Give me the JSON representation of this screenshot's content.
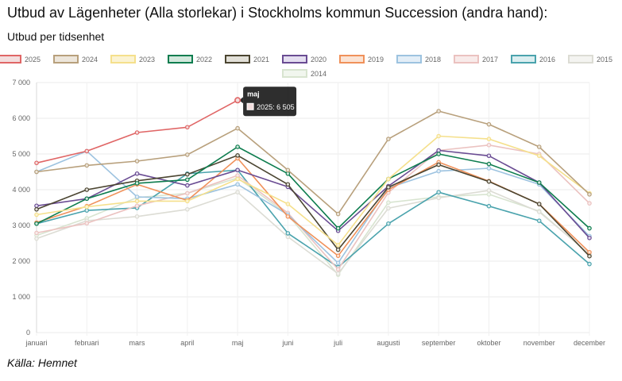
{
  "header": {
    "title": "Utbud av Lägenheter (Alla storlekar) i Stockholms kommun Succession (andra hand):",
    "subtitle": "Utbud per tidsenhet"
  },
  "footer": {
    "source": "Källa: Hemnet"
  },
  "tooltip": {
    "title": "maj",
    "label": "2025: 6 505",
    "series": "2025",
    "category_index": 4
  },
  "chart_data": {
    "type": "line",
    "categories": [
      "januari",
      "februari",
      "mars",
      "april",
      "maj",
      "juni",
      "juli",
      "augusti",
      "september",
      "oktober",
      "november",
      "december"
    ],
    "ylim": [
      0,
      7000
    ],
    "yticks": [
      0,
      1000,
      2000,
      3000,
      4000,
      5000,
      6000,
      7000
    ],
    "ytick_labels": [
      "0",
      "1 000",
      "2 000",
      "3 000",
      "4 000",
      "5 000",
      "6 000",
      "7 000"
    ],
    "grid": true,
    "legend_position": "top",
    "series": [
      {
        "name": "2025",
        "color": "#e06666",
        "fill": "#f3dede",
        "values": [
          4750,
          5080,
          5600,
          5750,
          6505,
          null,
          null,
          null,
          null,
          null,
          null,
          null
        ]
      },
      {
        "name": "2024",
        "color": "#b8a07c",
        "fill": "#ede6db",
        "values": [
          4500,
          4680,
          4800,
          4980,
          5720,
          4550,
          3320,
          5420,
          6200,
          5830,
          5200,
          3870
        ]
      },
      {
        "name": "2023",
        "color": "#f5e08c",
        "fill": "#fbf3d2",
        "values": [
          3300,
          3520,
          3680,
          3680,
          4300,
          3600,
          2450,
          4300,
          5500,
          5420,
          4950,
          3900
        ]
      },
      {
        "name": "2022",
        "color": "#0e7d4f",
        "fill": "#d2e8dc",
        "values": [
          3050,
          3750,
          4180,
          4280,
          5200,
          4450,
          2920,
          4300,
          5000,
          4720,
          4200,
          2920
        ]
      },
      {
        "name": "2021",
        "color": "#4b4531",
        "fill": "#e2e0d8",
        "values": [
          3450,
          4000,
          4250,
          4430,
          4960,
          4150,
          2320,
          4070,
          4700,
          4230,
          3600,
          2140
        ]
      },
      {
        "name": "2020",
        "color": "#6a4c93",
        "fill": "#e4def0",
        "values": [
          3550,
          3750,
          4450,
          4120,
          4550,
          4080,
          2850,
          4100,
          5100,
          4950,
          4200,
          2650
        ]
      },
      {
        "name": "2019",
        "color": "#f0915a",
        "fill": "#fbe3d4",
        "values": [
          3080,
          3540,
          4150,
          3700,
          4880,
          3250,
          2150,
          4000,
          4770,
          4240,
          3600,
          2250
        ]
      },
      {
        "name": "2018",
        "color": "#9dc3e0",
        "fill": "#e3eef7",
        "values": [
          4500,
          5080,
          3800,
          3750,
          4150,
          3300,
          1950,
          4050,
          4520,
          4600,
          4150,
          2700
        ]
      },
      {
        "name": "2017",
        "color": "#ebc2c0",
        "fill": "#f8ebea",
        "values": [
          2790,
          3060,
          3550,
          3900,
          4400,
          3350,
          1770,
          3920,
          5100,
          5250,
          5000,
          3620
        ]
      },
      {
        "name": "2016",
        "color": "#4aa3ad",
        "fill": "#dbeef0",
        "values": [
          3050,
          3420,
          3490,
          4450,
          4550,
          2780,
          1830,
          3050,
          3930,
          3540,
          3130,
          1920
        ]
      },
      {
        "name": "2015",
        "color": "#dcdcd4",
        "fill": "#f4f4f1",
        "values": [
          2630,
          3130,
          3250,
          3450,
          3930,
          2680,
          1650,
          3480,
          3770,
          3980,
          3380,
          2200
        ]
      },
      {
        "name": "2014",
        "color": "#d8e4d0",
        "fill": "#f1f6ee",
        "values": [
          2720,
          3200,
          3780,
          3900,
          4330,
          3300,
          1620,
          3640,
          3800,
          3870,
          3400,
          2190
        ]
      }
    ]
  }
}
